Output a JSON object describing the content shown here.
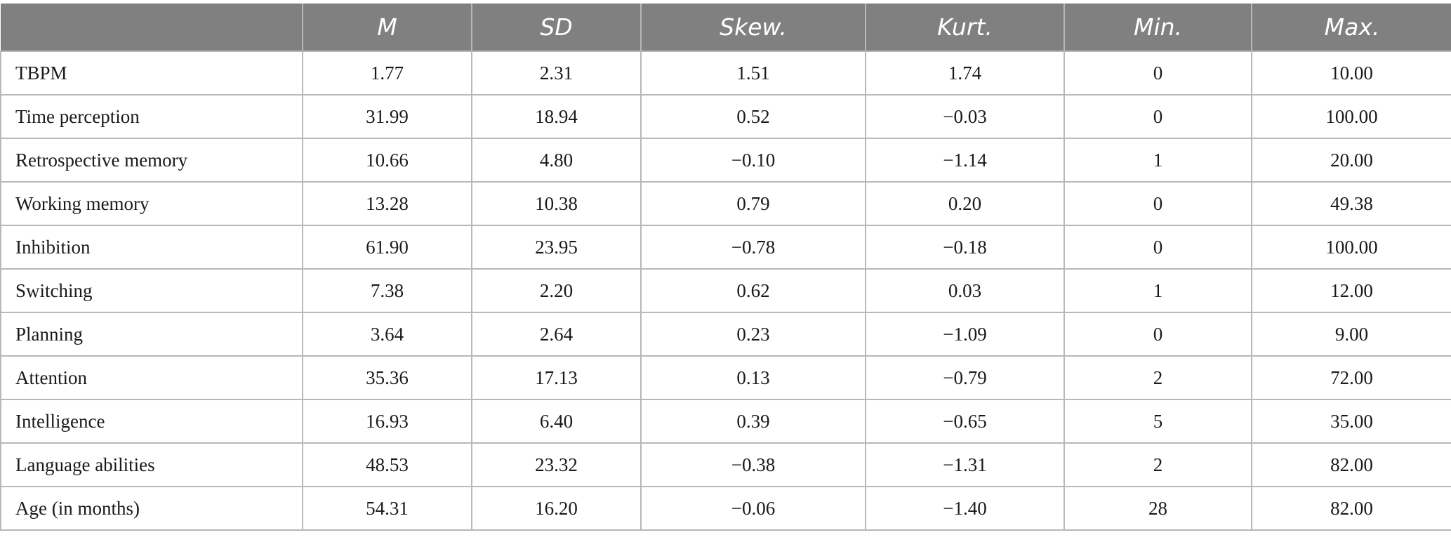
{
  "table": {
    "headers": [
      "",
      "M",
      "SD",
      "Skew.",
      "Kurt.",
      "Min.",
      "Max."
    ],
    "rows": [
      [
        "TBPM",
        "1.77",
        "2.31",
        "1.51",
        "1.74",
        "0",
        "10.00"
      ],
      [
        "Time perception",
        "31.99",
        "18.94",
        "0.52",
        "−0.03",
        "0",
        "100.00"
      ],
      [
        "Retrospective memory",
        "10.66",
        "4.80",
        "−0.10",
        "−1.14",
        "1",
        "20.00"
      ],
      [
        "Working memory",
        "13.28",
        "10.38",
        "0.79",
        "0.20",
        "0",
        "49.38"
      ],
      [
        "Inhibition",
        "61.90",
        "23.95",
        "−0.78",
        "−0.18",
        "0",
        "100.00"
      ],
      [
        "Switching",
        "7.38",
        "2.20",
        "0.62",
        "0.03",
        "1",
        "12.00"
      ],
      [
        "Planning",
        "3.64",
        "2.64",
        "0.23",
        "−1.09",
        "0",
        "9.00"
      ],
      [
        "Attention",
        "35.36",
        "17.13",
        "0.13",
        "−0.79",
        "2",
        "72.00"
      ],
      [
        "Intelligence",
        "16.93",
        "6.40",
        "0.39",
        "−0.65",
        "5",
        "35.00"
      ],
      [
        "Language abilities",
        "48.53",
        "23.32",
        "−0.38",
        "−1.31",
        "2",
        "82.00"
      ],
      [
        "Age (in months)",
        "54.31",
        "16.20",
        "−0.06",
        "−1.40",
        "28",
        "82.00"
      ]
    ]
  },
  "colors": {
    "header_bg": "#808080",
    "header_text": "#ffffff",
    "grid": "#b8b8b8",
    "body_text": "#1a1a1a"
  }
}
